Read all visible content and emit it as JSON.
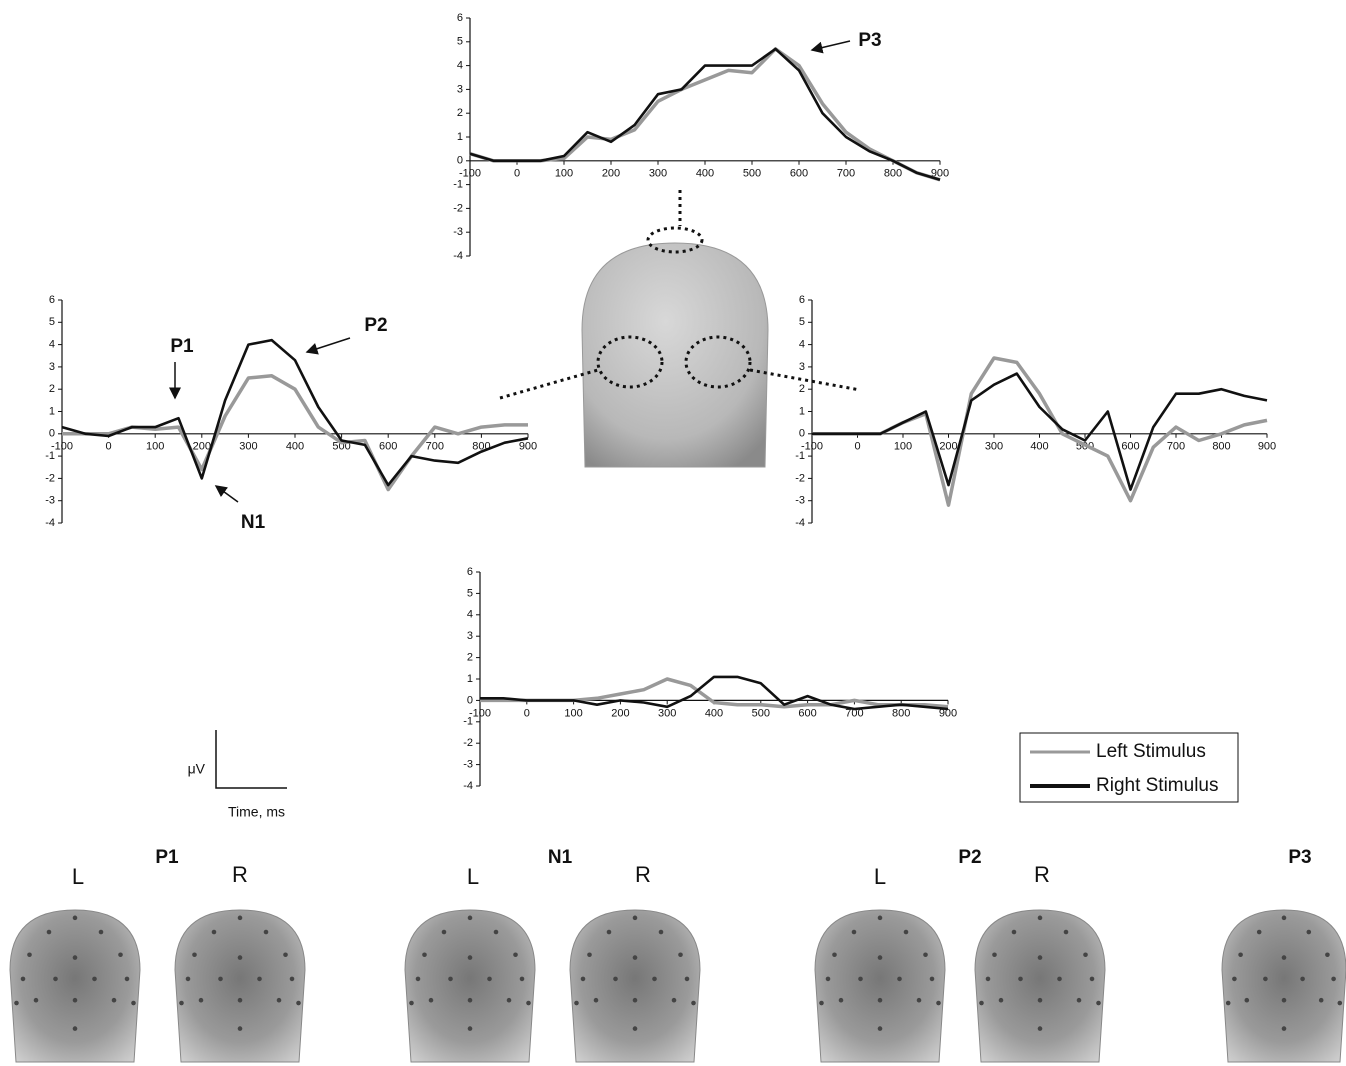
{
  "chart_data": [
    {
      "type": "line",
      "x": [
        -100,
        -50,
        0,
        50,
        100,
        150,
        200,
        250,
        300,
        350,
        400,
        450,
        500,
        550,
        600,
        650,
        700,
        750,
        800,
        850,
        900
      ],
      "series": [
        {
          "name": "Left Stimulus",
          "color": "#999999",
          "values": [
            0.3,
            0,
            0,
            0,
            0.1,
            1.0,
            0.9,
            1.3,
            2.5,
            3.0,
            3.4,
            3.8,
            3.7,
            4.7,
            4.0,
            2.4,
            1.2,
            0.5,
            0,
            -0.5,
            -0.8
          ]
        },
        {
          "name": "Right Stimulus",
          "color": "#111111",
          "values": [
            0.3,
            0,
            0,
            0,
            0.2,
            1.2,
            0.8,
            1.5,
            2.8,
            3.0,
            4.0,
            4.0,
            4.0,
            4.7,
            3.8,
            2.0,
            1.0,
            0.4,
            0,
            -0.5,
            -0.8
          ]
        }
      ],
      "xlim": [
        -100,
        900
      ],
      "ylim": [
        -4,
        6
      ],
      "xticks": [
        -100,
        0,
        100,
        200,
        300,
        400,
        500,
        600,
        700,
        800,
        900
      ],
      "yticks": [
        -4,
        -3,
        -2,
        -1,
        0,
        1,
        2,
        3,
        4,
        5,
        6
      ],
      "annotations": [
        "P3"
      ]
    },
    {
      "type": "line",
      "x": [
        -100,
        -50,
        0,
        50,
        100,
        150,
        200,
        250,
        300,
        350,
        400,
        450,
        500,
        550,
        600,
        650,
        700,
        750,
        800,
        850,
        900
      ],
      "series": [
        {
          "name": "Left Stimulus",
          "color": "#999999",
          "values": [
            0,
            0,
            0,
            0.3,
            0.2,
            0.3,
            -1.6,
            0.8,
            2.5,
            2.6,
            2.0,
            0.3,
            -0.4,
            -0.3,
            -2.5,
            -1.0,
            0.3,
            0.0,
            0.3,
            0.4,
            0.4
          ]
        },
        {
          "name": "Right Stimulus",
          "color": "#111111",
          "values": [
            0.3,
            0,
            -0.1,
            0.3,
            0.3,
            0.7,
            -2.0,
            1.5,
            4.0,
            4.2,
            3.3,
            1.2,
            -0.3,
            -0.5,
            -2.3,
            -1.0,
            -1.2,
            -1.3,
            -0.8,
            -0.4,
            -0.2
          ]
        }
      ],
      "xlim": [
        -100,
        900
      ],
      "ylim": [
        -4,
        6
      ],
      "xticks": [
        -100,
        0,
        100,
        200,
        300,
        400,
        500,
        600,
        700,
        800,
        900
      ],
      "yticks": [
        -4,
        -3,
        -2,
        -1,
        0,
        1,
        2,
        3,
        4,
        5,
        6
      ],
      "annotations": [
        "P1",
        "P2",
        "N1"
      ]
    },
    {
      "type": "line",
      "x": [
        -100,
        -50,
        0,
        50,
        100,
        150,
        200,
        250,
        300,
        350,
        400,
        450,
        500,
        550,
        600,
        650,
        700,
        750,
        800,
        850,
        900
      ],
      "series": [
        {
          "name": "Left Stimulus",
          "color": "#999999",
          "values": [
            0,
            0,
            0,
            0,
            0.5,
            0.9,
            -3.2,
            1.8,
            3.4,
            3.2,
            1.8,
            0.0,
            -0.5,
            -1.0,
            -3.0,
            -0.6,
            0.3,
            -0.3,
            0.0,
            0.4,
            0.6
          ]
        },
        {
          "name": "Right Stimulus",
          "color": "#111111",
          "values": [
            0,
            0,
            0,
            0,
            0.5,
            1.0,
            -2.3,
            1.5,
            2.2,
            2.7,
            1.2,
            0.2,
            -0.3,
            1.0,
            -2.5,
            0.3,
            1.8,
            1.8,
            2.0,
            1.7,
            1.5
          ]
        }
      ],
      "xlim": [
        -100,
        900
      ],
      "ylim": [
        -4,
        6
      ],
      "xticks": [
        -100,
        0,
        100,
        200,
        300,
        400,
        500,
        600,
        700,
        800,
        900
      ],
      "yticks": [
        -4,
        -3,
        -2,
        -1,
        0,
        1,
        2,
        3,
        4,
        5,
        6
      ],
      "annotations": []
    },
    {
      "type": "line",
      "x": [
        -100,
        -50,
        0,
        50,
        100,
        150,
        200,
        250,
        300,
        350,
        400,
        450,
        500,
        550,
        600,
        650,
        700,
        750,
        800,
        850,
        900
      ],
      "series": [
        {
          "name": "Left Stimulus",
          "color": "#999999",
          "values": [
            0,
            0,
            0,
            0,
            0,
            0.1,
            0.3,
            0.5,
            1.0,
            0.7,
            -0.1,
            -0.2,
            -0.2,
            -0.3,
            -0.2,
            -0.2,
            0.0,
            -0.2,
            -0.2,
            -0.2,
            -0.3
          ]
        },
        {
          "name": "Right Stimulus",
          "color": "#111111",
          "values": [
            0.1,
            0.1,
            0,
            0,
            0,
            -0.2,
            0,
            -0.1,
            -0.3,
            0.2,
            1.1,
            1.1,
            0.8,
            -0.2,
            0.2,
            -0.2,
            -0.4,
            -0.3,
            -0.2,
            -0.3,
            -0.4
          ]
        }
      ],
      "xlim": [
        -100,
        900
      ],
      "ylim": [
        -4,
        6
      ],
      "xticks": [
        -100,
        0,
        100,
        200,
        300,
        400,
        500,
        600,
        700,
        800,
        900
      ],
      "yticks": [
        -4,
        -3,
        -2,
        -1,
        0,
        1,
        2,
        3,
        4,
        5,
        6
      ],
      "annotations": []
    }
  ],
  "scale_bar": {
    "y_label": "μV",
    "x_label": "Time, ms"
  },
  "topomaps": [
    {
      "title": "P1",
      "left": "L",
      "right": "R"
    },
    {
      "title": "N1",
      "left": "L",
      "right": "R"
    },
    {
      "title": "P2",
      "left": "L",
      "right": "R"
    },
    {
      "title": "P3"
    }
  ]
}
